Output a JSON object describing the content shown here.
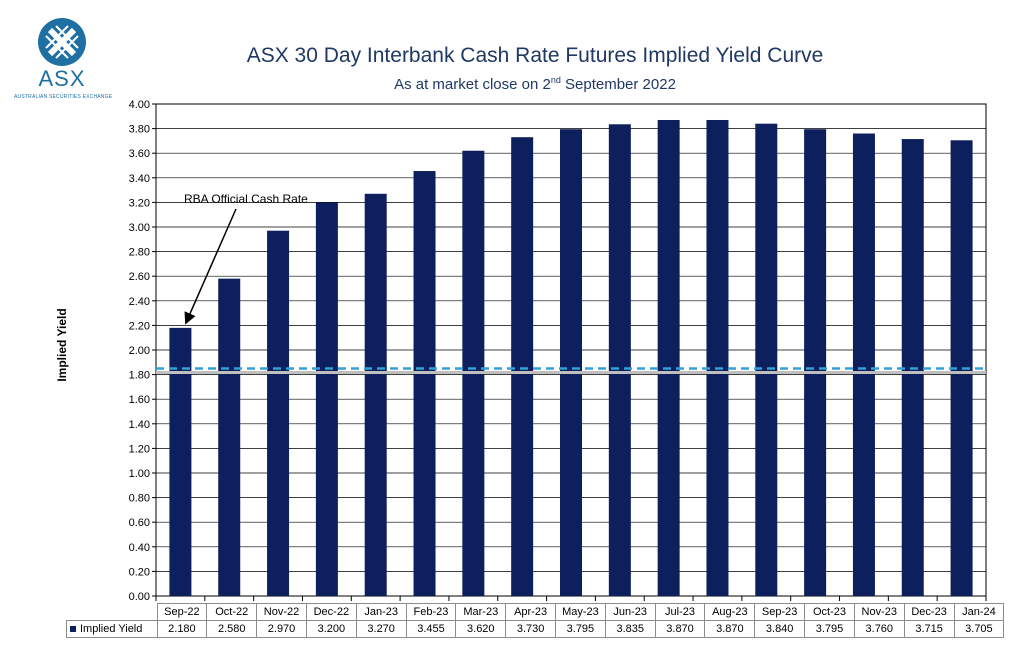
{
  "logo": {
    "text": "ASX",
    "subtext": "AUSTRALIAN SECURITIES EXCHANGE",
    "color": "#1f6fa3"
  },
  "chart_data": {
    "type": "bar",
    "title": "ASX 30 Day Interbank Cash Rate Futures Implied Yield Curve",
    "subtitle_pre": "As at market close on 2",
    "subtitle_sup": "nd",
    "subtitle_post": " September 2022",
    "xlabel": "",
    "ylabel": "Implied Yield",
    "ylim": [
      0,
      4.0
    ],
    "ytick_step": 0.2,
    "ytick_decimals": 2,
    "grid": true,
    "categories": [
      "Sep-22",
      "Oct-22",
      "Nov-22",
      "Dec-22",
      "Jan-23",
      "Feb-23",
      "Mar-23",
      "Apr-23",
      "May-23",
      "Jun-23",
      "Jul-23",
      "Aug-23",
      "Sep-23",
      "Oct-23",
      "Nov-23",
      "Dec-23",
      "Jan-24"
    ],
    "series": [
      {
        "name": "Implied Yield",
        "color": "#0d1f5c",
        "values": [
          2.18,
          2.58,
          2.97,
          3.2,
          3.27,
          3.455,
          3.62,
          3.73,
          3.795,
          3.835,
          3.87,
          3.87,
          3.84,
          3.795,
          3.76,
          3.715,
          3.705
        ],
        "labels": [
          "2.180",
          "2.580",
          "2.970",
          "3.200",
          "3.270",
          "3.455",
          "3.620",
          "3.730",
          "3.795",
          "3.835",
          "3.870",
          "3.870",
          "3.840",
          "3.795",
          "3.760",
          "3.715",
          "3.705"
        ]
      }
    ],
    "reference_line": {
      "value": 1.85,
      "color": "#33a1d6",
      "style": "dashed"
    },
    "annotation": {
      "text": "RBA Official Cash Rate",
      "target_category": "Sep-22"
    }
  }
}
